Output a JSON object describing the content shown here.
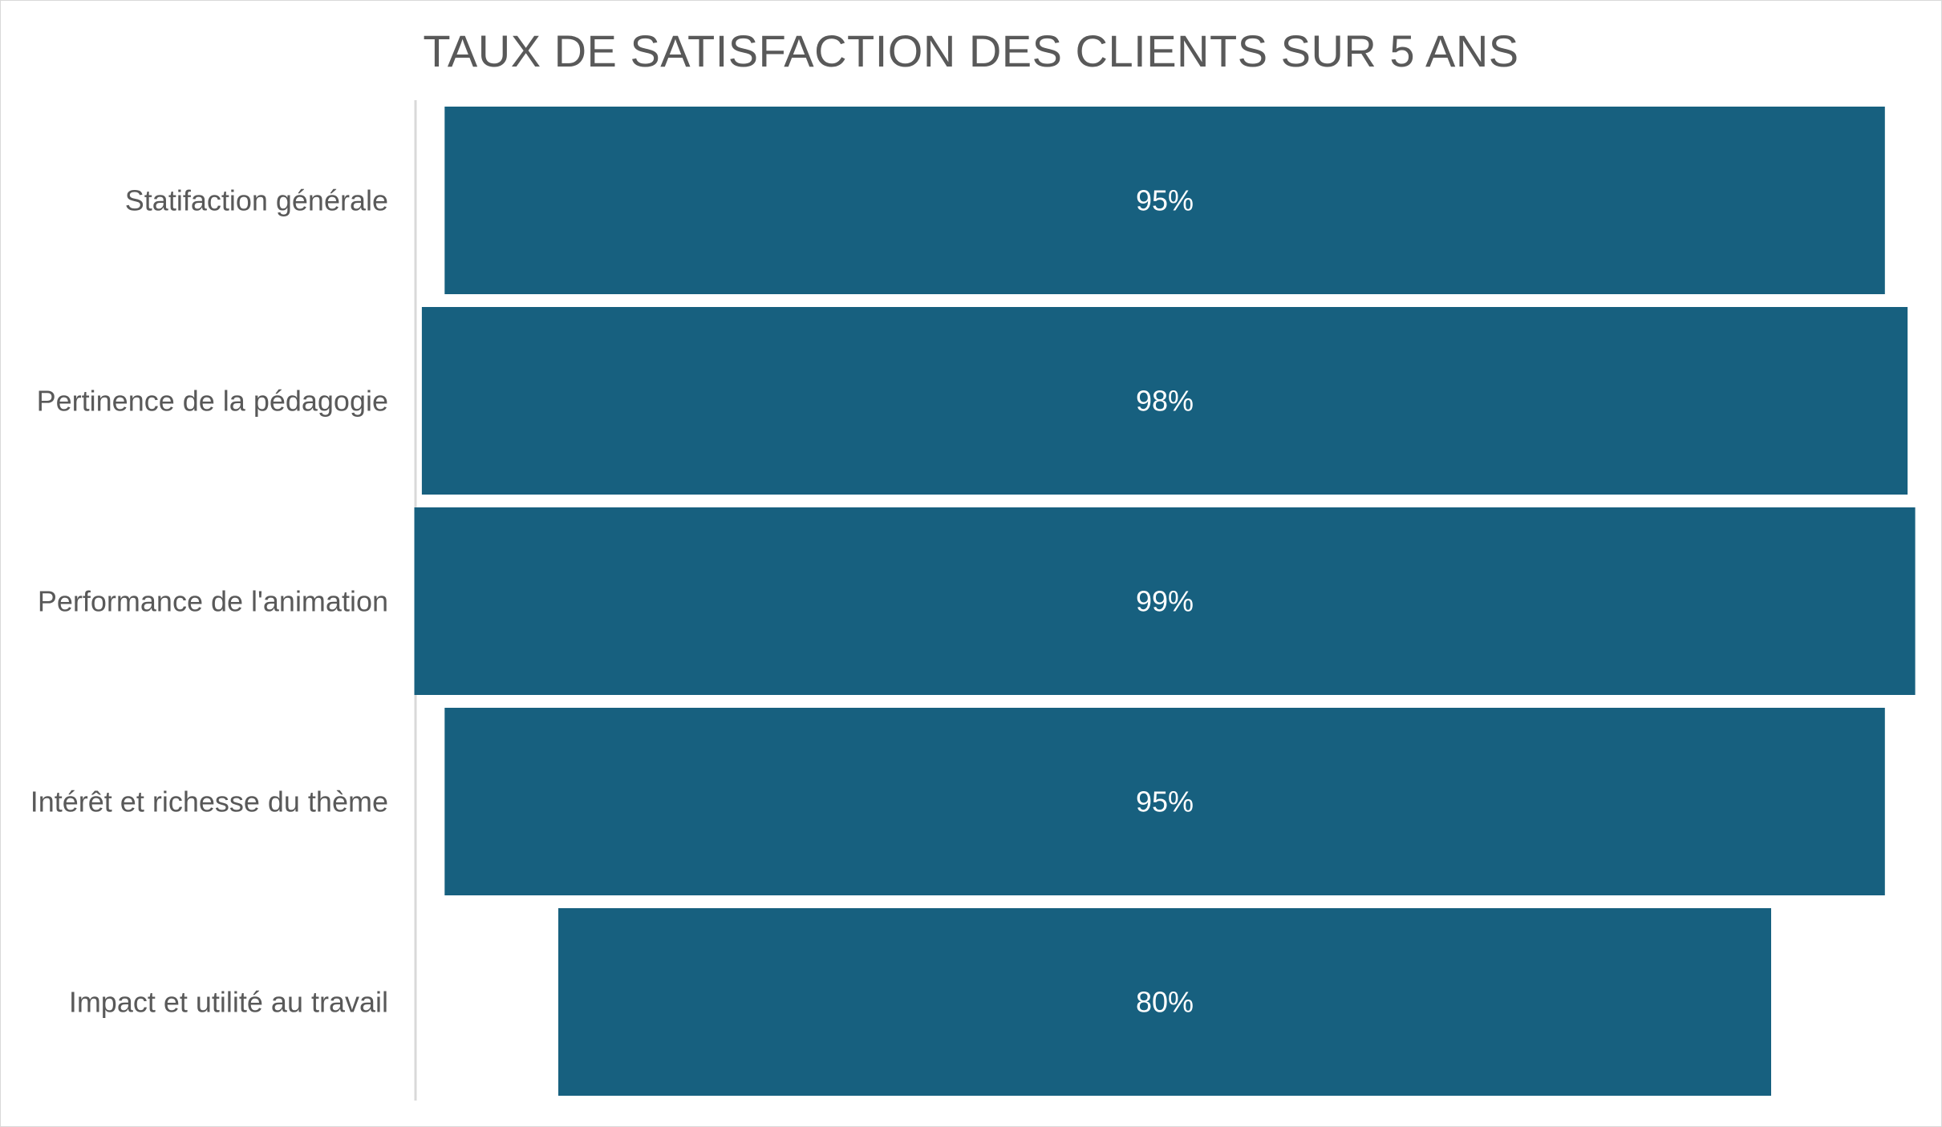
{
  "chart_data": {
    "type": "bar",
    "subtype": "funnel",
    "orientation": "horizontal",
    "title": "TAUX DE SATISFACTION DES CLIENTS SUR 5 ANS",
    "categories": [
      "Statifaction générale",
      "Pertinence de la pédagogie",
      "Performance de l'animation",
      "Intérêt et richesse du thème",
      "Impact et utilité au travail"
    ],
    "values": [
      95,
      98,
      99,
      95,
      80
    ],
    "data_labels": [
      "95%",
      "98%",
      "99%",
      "95%",
      "80%"
    ],
    "unit": "%",
    "bar_color": "#17607f",
    "label_color": "#ffffff",
    "text_color": "#595959",
    "axis_color": "#d9d9d9",
    "grid": false,
    "legend": "none"
  }
}
